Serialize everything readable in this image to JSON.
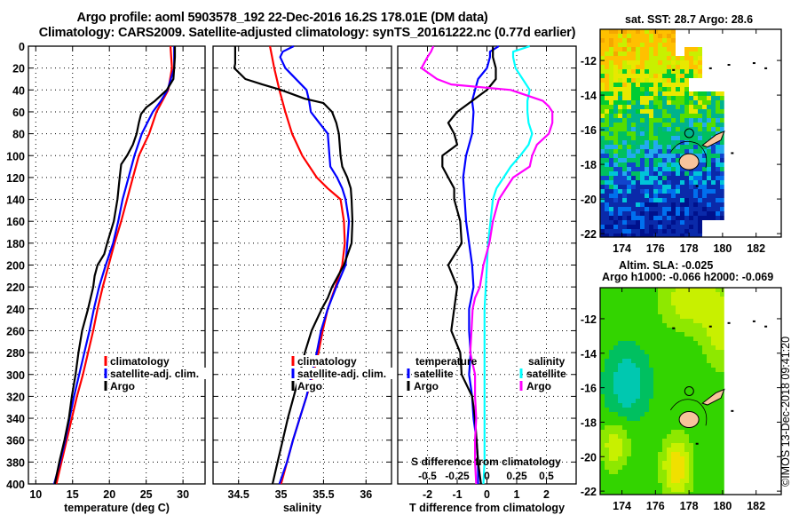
{
  "header": {
    "title_line1": "Argo profile: aoml 5903578_192 22-Dec-2016 16.2S 178.01E (DM data)",
    "title_line2": "Climatology: CARS2009. Satellite-adjusted climatology: synTS_20161222.nc (0.77d earlier)"
  },
  "colors": {
    "climatology": "#ff0000",
    "satellite_adj": "#0000ff",
    "argo": "#000000",
    "s_satellite": "#00ffff",
    "s_argo": "#ff00ff",
    "land": "#f7c49c"
  },
  "maps": {
    "sst_title": "sat. SST: 28.7 Argo: 28.6",
    "sla_title_line1": "Altim. SLA: -0.025",
    "sla_title_line2": "Argo h1000: -0.066 h2000: -0.069",
    "lat_ticks": [
      "-12",
      "-14",
      "-16",
      "-18",
      "-20",
      "-22"
    ],
    "lon_ticks": [
      "174",
      "176",
      "178",
      "180",
      "182"
    ],
    "argo_position": {
      "lat": -16.2,
      "lon": 178.01
    }
  },
  "footer": {
    "stamp": "©IMOS 13-Dec-2018 09:41:20"
  },
  "chart_data": [
    {
      "type": "line",
      "title": "",
      "xlabel": "temperature (deg C)",
      "ylabel": "",
      "xlim": [
        9,
        33
      ],
      "ylim": [
        400,
        0
      ],
      "x_ticks": [
        10,
        15,
        20,
        25,
        30
      ],
      "y_ticks": [
        0,
        20,
        40,
        60,
        80,
        100,
        120,
        140,
        160,
        180,
        200,
        220,
        240,
        260,
        280,
        300,
        320,
        340,
        360,
        380,
        400
      ],
      "grid": true,
      "legend": {
        "placement": "lower-right",
        "entries": [
          "climatology",
          "satellite-adj. clim.",
          "Argo"
        ]
      },
      "series": [
        {
          "name": "climatology",
          "color": "#ff0000",
          "depth": [
            0,
            20,
            40,
            50,
            60,
            80,
            100,
            120,
            140,
            160,
            180,
            200,
            220,
            240,
            260,
            280,
            300,
            320,
            340,
            360,
            380,
            400
          ],
          "values": [
            28.3,
            28.5,
            28.0,
            27.2,
            26.4,
            25.4,
            24.0,
            23.2,
            22.4,
            21.6,
            20.7,
            19.9,
            19.1,
            18.4,
            17.8,
            17.1,
            16.4,
            15.6,
            14.9,
            14.2,
            13.5,
            12.8
          ]
        },
        {
          "name": "satellite-adj. clim.",
          "color": "#0000ff",
          "depth": [
            0,
            20,
            40,
            50,
            60,
            80,
            100,
            120,
            140,
            160,
            180,
            200,
            220,
            240,
            260,
            280,
            300,
            320,
            340,
            360,
            380,
            400
          ],
          "values": [
            28.8,
            28.8,
            27.9,
            27.0,
            25.9,
            24.4,
            23.4,
            22.6,
            21.8,
            21.2,
            20.5,
            19.5,
            18.6,
            17.9,
            17.3,
            16.6,
            15.9,
            15.2,
            14.6,
            14.0,
            13.3,
            12.5
          ]
        },
        {
          "name": "Argo",
          "color": "#000000",
          "depth": [
            0,
            10,
            20,
            30,
            40,
            50,
            56,
            62,
            70,
            80,
            90,
            100,
            108,
            120,
            140,
            160,
            180,
            190,
            200,
            210,
            220,
            240,
            260,
            280,
            300,
            320,
            340,
            360,
            380,
            400
          ],
          "values": [
            28.9,
            28.9,
            28.8,
            28.7,
            27.8,
            26.2,
            25.0,
            24.3,
            24.0,
            23.7,
            23.2,
            22.4,
            21.6,
            21.4,
            21.1,
            20.6,
            19.7,
            19.3,
            18.4,
            18.0,
            17.8,
            17.1,
            16.3,
            15.8,
            15.4,
            14.9,
            14.5,
            13.9,
            13.2,
            12.6
          ]
        }
      ]
    },
    {
      "type": "line",
      "title": "",
      "xlabel": "salinity",
      "ylabel": "",
      "xlim": [
        34.2,
        36.3
      ],
      "ylim": [
        400,
        0
      ],
      "x_ticks": [
        34.5,
        35,
        35.5,
        36
      ],
      "x_tick_labels": [
        "34.5",
        "35",
        "35.5",
        "36"
      ],
      "grid": true,
      "legend": {
        "placement": "lower-right",
        "entries": [
          "climatology",
          "satellite-adj. clim.",
          "Argo"
        ]
      },
      "series": [
        {
          "name": "climatology",
          "color": "#ff0000",
          "depth": [
            0,
            20,
            40,
            60,
            80,
            100,
            120,
            130,
            140,
            160,
            180,
            200,
            220,
            240,
            260,
            280,
            300,
            320,
            340,
            360,
            380,
            400
          ],
          "values": [
            34.87,
            34.92,
            34.98,
            35.05,
            35.13,
            35.25,
            35.42,
            35.55,
            35.7,
            35.74,
            35.75,
            35.72,
            35.64,
            35.55,
            35.49,
            35.44,
            35.38,
            35.3,
            35.22,
            35.14,
            35.07,
            35.0
          ]
        },
        {
          "name": "satellite-adj. clim.",
          "color": "#0000ff",
          "depth": [
            0,
            5,
            10,
            20,
            40,
            50,
            60,
            70,
            80,
            100,
            110,
            120,
            130,
            140,
            160,
            180,
            200,
            220,
            240,
            260,
            280,
            300,
            320,
            340,
            360,
            380,
            400
          ],
          "values": [
            35.15,
            35.02,
            34.99,
            35.05,
            35.3,
            35.33,
            35.35,
            35.45,
            35.55,
            35.57,
            35.58,
            35.66,
            35.72,
            35.76,
            35.8,
            35.78,
            35.76,
            35.65,
            35.55,
            35.47,
            35.42,
            35.36,
            35.3,
            35.22,
            35.14,
            35.07,
            34.98
          ]
        },
        {
          "name": "Argo",
          "color": "#000000",
          "depth": [
            0,
            5,
            10,
            16,
            20,
            30,
            35,
            40,
            48,
            52,
            60,
            70,
            80,
            100,
            110,
            120,
            130,
            140,
            160,
            180,
            200,
            220,
            230,
            240,
            260,
            280,
            300,
            320,
            340,
            360,
            380,
            400
          ],
          "values": [
            34.46,
            34.46,
            34.46,
            34.46,
            34.45,
            34.58,
            34.78,
            35.0,
            35.28,
            35.5,
            35.6,
            35.65,
            35.68,
            35.7,
            35.72,
            35.78,
            35.82,
            35.83,
            35.84,
            35.83,
            35.74,
            35.6,
            35.55,
            35.48,
            35.36,
            35.28,
            35.22,
            35.15,
            35.08,
            35.02,
            34.96,
            34.9
          ]
        }
      ]
    },
    {
      "type": "line",
      "title": "",
      "xlabel": "T difference from climatology",
      "secondary_xlabel": "S difference from climatology",
      "xlim": [
        -3,
        3
      ],
      "secondary_xlim": [
        -0.75,
        0.75
      ],
      "ylim": [
        400,
        0
      ],
      "x_ticks": [
        -2,
        -1,
        0,
        1,
        2
      ],
      "secondary_x_ticks": [
        -0.5,
        -0.25,
        0,
        0.25,
        0.5
      ],
      "secondary_x_tick_labels": [
        "-0.5",
        "-0.25",
        "0",
        "0.25",
        "0.5"
      ],
      "grid": true,
      "legend": {
        "placement": "lower",
        "groups": [
          {
            "title": "temperature",
            "entries": [
              "satellite",
              "Argo"
            ]
          },
          {
            "title": "salinity",
            "entries": [
              "satellite",
              "Argo"
            ]
          }
        ]
      },
      "series": [
        {
          "name": "temperature satellite",
          "color": "#0000ff",
          "axis": "T",
          "depth": [
            0,
            5,
            10,
            20,
            30,
            40,
            50,
            60,
            80,
            100,
            120,
            140,
            160,
            180,
            200,
            220,
            240,
            260,
            280,
            300,
            320,
            340,
            360,
            380,
            400
          ],
          "values": [
            0.4,
            0.1,
            0.1,
            0.0,
            -0.3,
            -0.4,
            -0.5,
            -0.45,
            -0.5,
            -0.7,
            -0.8,
            -0.75,
            -0.7,
            -0.6,
            -0.5,
            -0.45,
            -0.6,
            -0.6,
            -0.55,
            -0.6,
            -0.5,
            -0.45,
            -0.35,
            -0.3,
            -0.3
          ]
        },
        {
          "name": "temperature Argo",
          "color": "#000000",
          "axis": "T",
          "depth": [
            0,
            10,
            20,
            30,
            40,
            50,
            60,
            70,
            80,
            90,
            100,
            110,
            120,
            130,
            140,
            160,
            180,
            200,
            220,
            240,
            260,
            280,
            300,
            320,
            340,
            360,
            380,
            400
          ],
          "values": [
            0.2,
            0.2,
            0.3,
            0.3,
            0.0,
            -0.5,
            -1.0,
            -1.3,
            -1.1,
            -1.0,
            -1.5,
            -1.5,
            -1.3,
            -1.1,
            -1.1,
            -0.9,
            -0.85,
            -1.3,
            -1.0,
            -1.1,
            -1.2,
            -0.9,
            -0.85,
            -0.5,
            -0.4,
            -0.35,
            -0.3,
            -0.2
          ]
        },
        {
          "name": "salinity satellite",
          "color": "#00ffff",
          "axis": "S",
          "depth": [
            0,
            5,
            10,
            20,
            30,
            40,
            50,
            60,
            70,
            80,
            90,
            100,
            110,
            120,
            130,
            140,
            160,
            180,
            200,
            220,
            240,
            260,
            280,
            300,
            320,
            340,
            360,
            380,
            400
          ],
          "values": [
            0.36,
            0.22,
            0.22,
            0.24,
            0.3,
            0.36,
            0.34,
            0.34,
            0.35,
            0.38,
            0.35,
            0.28,
            0.2,
            0.14,
            0.08,
            0.05,
            0.03,
            0.01,
            0.0,
            -0.01,
            -0.02,
            -0.02,
            -0.02,
            -0.02,
            -0.02,
            -0.02,
            -0.02,
            -0.02,
            -0.03
          ]
        },
        {
          "name": "salinity Argo",
          "color": "#ff00ff",
          "axis": "S",
          "depth": [
            0,
            5,
            10,
            20,
            30,
            35,
            40,
            50,
            55,
            60,
            70,
            80,
            90,
            100,
            110,
            120,
            140,
            160,
            180,
            200,
            220,
            230,
            240,
            260,
            280,
            300,
            320,
            340,
            360,
            380,
            400
          ],
          "values": [
            -0.45,
            -0.47,
            -0.5,
            -0.55,
            -0.42,
            -0.3,
            0.2,
            0.47,
            0.52,
            0.55,
            0.55,
            0.52,
            0.42,
            0.38,
            0.36,
            0.22,
            0.1,
            0.05,
            0.02,
            -0.03,
            -0.06,
            -0.1,
            -0.12,
            -0.13,
            -0.14,
            -0.1,
            -0.1,
            -0.09,
            -0.1,
            -0.1,
            -0.09
          ]
        }
      ]
    }
  ]
}
